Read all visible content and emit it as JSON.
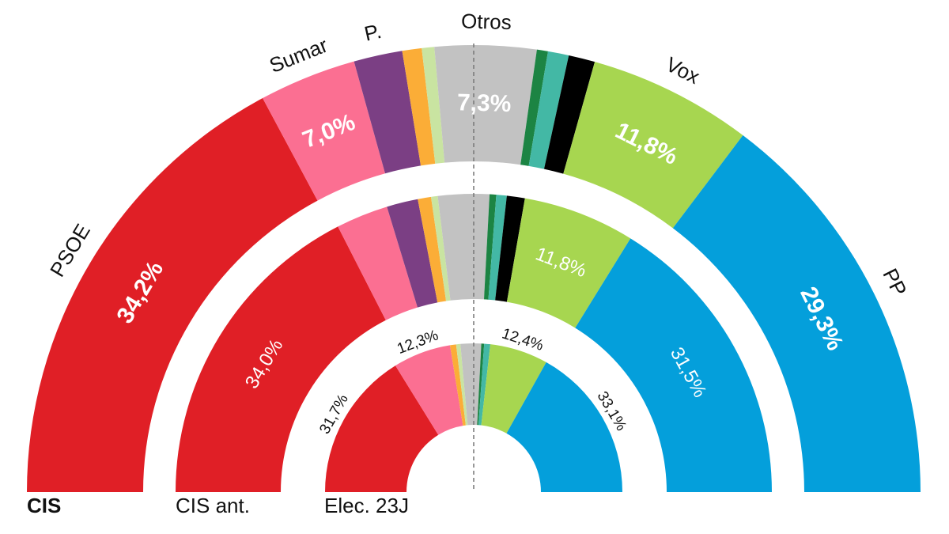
{
  "chart_data": {
    "type": "semicircle-donut",
    "title": "",
    "colors": {
      "PSOE": "#e01f26",
      "Sumar": "#fb6f92",
      "P.": "#7b3f84",
      "orange": "#fbad37",
      "lightgreen": "#c9e4a1",
      "Otros": "#c2c2c2",
      "darkgreen": "#1c8443",
      "teal": "#43b8a5",
      "black": "#000000",
      "Vox": "#a7d650",
      "PP": "#049fdb"
    },
    "party_labels": [
      {
        "text": "PSOE",
        "id": "PSOE"
      },
      {
        "text": "Sumar",
        "id": "Sumar"
      },
      {
        "text": "P.",
        "id": "P."
      },
      {
        "text": "Otros",
        "id": "Otros"
      },
      {
        "text": "Vox",
        "id": "Vox"
      },
      {
        "text": "PP",
        "id": "PP"
      }
    ],
    "series": [
      {
        "name": "CIS",
        "segments": [
          {
            "party": "PSOE",
            "value": 34.2,
            "label": "34,2%"
          },
          {
            "party": "Sumar",
            "value": 7.0,
            "label": "7,0%"
          },
          {
            "party": "P.",
            "value": 3.5
          },
          {
            "party": "orange",
            "value": 1.4
          },
          {
            "party": "lightgreen",
            "value": 0.9
          },
          {
            "party": "Otros",
            "value": 7.3,
            "label": "7,3%"
          },
          {
            "party": "darkgreen",
            "value": 0.8
          },
          {
            "party": "teal",
            "value": 1.5
          },
          {
            "party": "black",
            "value": 1.9
          },
          {
            "party": "Vox",
            "value": 11.8,
            "label": "11,8%"
          },
          {
            "party": "PP",
            "value": 29.3,
            "label": "29,3%"
          }
        ]
      },
      {
        "name": "CIS ant.",
        "segments": [
          {
            "party": "PSOE",
            "value": 34.0,
            "label": "34,0%"
          },
          {
            "party": "Sumar",
            "value": 5.5
          },
          {
            "party": "P.",
            "value": 3.3
          },
          {
            "party": "orange",
            "value": 1.4
          },
          {
            "party": "lightgreen",
            "value": 0.7
          },
          {
            "party": "Otros",
            "value": 5.4
          },
          {
            "party": "darkgreen",
            "value": 0.7
          },
          {
            "party": "teal",
            "value": 1.1
          },
          {
            "party": "black",
            "value": 1.9
          },
          {
            "party": "Vox",
            "value": 11.8,
            "label": "11,8%"
          },
          {
            "party": "PP",
            "value": 31.5,
            "label": "31,5%"
          }
        ]
      },
      {
        "name": "Elec. 23J",
        "segments": [
          {
            "party": "PSOE",
            "value": 31.7,
            "label": "31,7%"
          },
          {
            "party": "Sumar",
            "value": 12.3,
            "label": "12,3%"
          },
          {
            "party": "orange",
            "value": 1.3
          },
          {
            "party": "lightgreen",
            "value": 0.9
          },
          {
            "party": "Otros",
            "value": 4.4
          },
          {
            "party": "darkgreen",
            "value": 0.6
          },
          {
            "party": "teal",
            "value": 1.3
          },
          {
            "party": "Vox",
            "value": 12.4,
            "label": "12,4%"
          },
          {
            "party": "PP",
            "value": 33.1,
            "label": "33,1%"
          }
        ]
      }
    ]
  }
}
